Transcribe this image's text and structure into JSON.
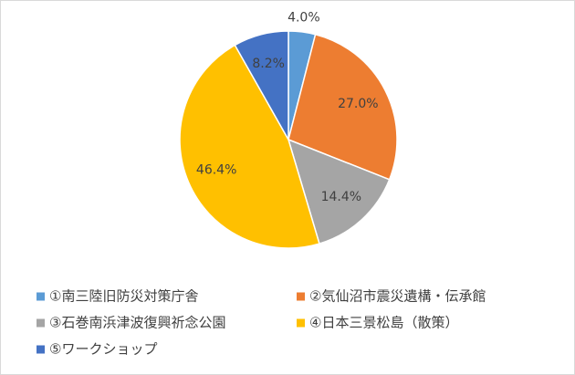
{
  "chart_data": {
    "type": "pie",
    "categories": [
      "①南三陸旧防災対策庁舎",
      "②気仙沼市震災遺構・伝承館",
      "③石巻南浜津波復興祈念公園",
      "④日本三景松島（散策）",
      "⑤ワークショップ"
    ],
    "values": [
      4.0,
      27.0,
      14.4,
      46.4,
      8.2
    ],
    "value_labels": [
      "4.0%",
      "27.0%",
      "14.4%",
      "46.4%",
      "8.2%"
    ],
    "colors": [
      "#5b9bd5",
      "#ed7d31",
      "#a5a5a5",
      "#ffc000",
      "#4472c4"
    ],
    "legend": "bottom"
  }
}
